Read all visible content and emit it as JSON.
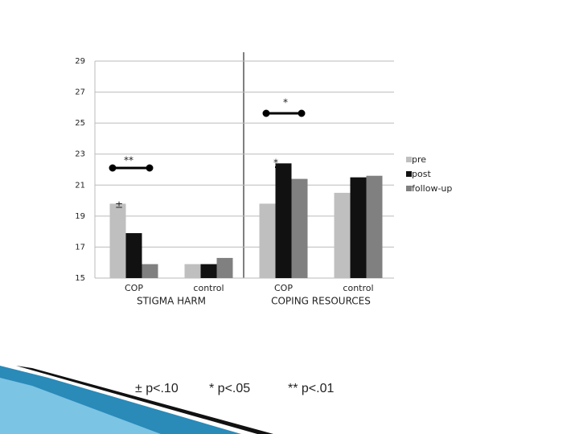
{
  "chart_data": {
    "type": "bar",
    "categories": [
      "COP",
      "control",
      "COP",
      "control"
    ],
    "group_labels": [
      "STIGMA HARM",
      "COPING RESOURCES"
    ],
    "series": [
      {
        "name": "pre",
        "color": "#bfbfbf",
        "values": [
          19.8,
          15.9,
          19.8,
          20.5
        ]
      },
      {
        "name": "post",
        "color": "#111111",
        "values": [
          17.9,
          15.9,
          22.4,
          21.5
        ]
      },
      {
        "name": "follow-up",
        "color": "#808080",
        "values": [
          15.9,
          16.3,
          21.4,
          21.6
        ]
      }
    ],
    "ylim": [
      15,
      29
    ],
    "yticks": [
      15,
      17,
      19,
      21,
      23,
      25,
      27,
      29
    ],
    "grid": true,
    "legend": "right",
    "annotations": [
      "**",
      "±",
      "*",
      "*"
    ],
    "footnotes": [
      "± p<.10",
      "* p<.05",
      "** p<.01"
    ]
  }
}
